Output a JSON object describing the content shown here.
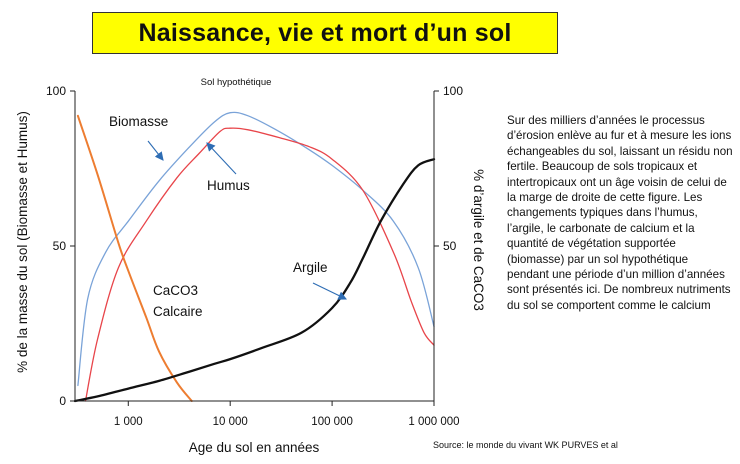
{
  "header": {
    "title": "Naissance, vie et mort d’un sol"
  },
  "description": "Sur des milliers d’années le processus d’érosion enlève au fur et à mesure les ions échangeables du sol, laissant un résidu non fertile. Beaucoup de sols tropicaux et intertropicaux ont un âge voisin de celui de la marge de droite de cette figure. Les changements typiques dans l’humus, l’argile, le carbonate de calcium et la quantité de végétation supportée (biomasse) par un sol hypothétique pendant une période d’un million d’années sont présentés ici. De nombreux nutriments du sol se comportent comme le calcium",
  "source": "Source: le monde du vivant WK PURVES et al",
  "chart_data": {
    "type": "line",
    "title": "Sol hypothétique",
    "xlabel": "Age du sol en années",
    "ylabel_left": "% de la masse du sol (Biomasse et Humus)",
    "ylabel_right": "% d’argile et de CaCO3",
    "x_scale": "log",
    "xlim": [
      300,
      1000000
    ],
    "ylim": [
      0,
      100
    ],
    "x_ticks": [
      {
        "value": 1000,
        "label": "1 000"
      },
      {
        "value": 10000,
        "label": "10 000"
      },
      {
        "value": 100000,
        "label": "100 000"
      },
      {
        "value": 1000000,
        "label": "1 000 000"
      }
    ],
    "y_ticks": [
      {
        "value": 0,
        "label": "0"
      },
      {
        "value": 50,
        "label": "50"
      },
      {
        "value": 100,
        "label": "100"
      }
    ],
    "y2_ticks": [
      {
        "value": 50,
        "label": "50"
      },
      {
        "value": 100,
        "label": "100"
      }
    ],
    "series": [
      {
        "name": "Biomasse",
        "axis": "left",
        "color": "#7aa3d8",
        "x": [
          320,
          400,
          600,
          1000,
          2000,
          4000,
          7000,
          10000,
          15000,
          30000,
          60000,
          100000,
          200000,
          400000,
          700000,
          1000000
        ],
        "y": [
          5,
          33,
          48,
          58,
          71,
          82,
          90,
          93,
          92,
          87,
          81,
          76,
          68,
          58,
          43,
          24
        ]
      },
      {
        "name": "Humus",
        "axis": "left",
        "color": "#e8454a",
        "x": [
          380,
          500,
          800,
          1500,
          3000,
          5000,
          8000,
          10000,
          15000,
          30000,
          60000,
          100000,
          200000,
          400000,
          600000,
          800000,
          1000000
        ],
        "y": [
          0,
          20,
          43,
          58,
          72,
          80,
          87,
          88,
          87.5,
          85,
          82,
          78,
          68,
          48,
          32,
          22,
          18
        ]
      },
      {
        "name": "CaCO3 Calcaire",
        "axis": "right",
        "color": "#ed7d31",
        "x": [
          320,
          500,
          800,
          1000,
          1500,
          2000,
          3000,
          4200
        ],
        "y": [
          92,
          73,
          51,
          42,
          27,
          16,
          6,
          0
        ]
      },
      {
        "name": "Argile",
        "axis": "right",
        "color": "#111111",
        "x": [
          300,
          500,
          1000,
          2000,
          4000,
          7000,
          10000,
          20000,
          50000,
          100000,
          150000,
          200000,
          300000,
          500000,
          700000,
          1000000
        ],
        "y": [
          0,
          1.5,
          4,
          6.5,
          9.5,
          12,
          13.5,
          17,
          22,
          30,
          38,
          46,
          58,
          70,
          76,
          78
        ]
      }
    ],
    "annotations": [
      {
        "series": "Biomasse",
        "text": "Biomasse"
      },
      {
        "series": "Humus",
        "text": "Humus"
      },
      {
        "series": "CaCO3 Calcaire",
        "text": "CaCO3"
      },
      {
        "series": "CaCO3 Calcaire",
        "text": "Calcaire"
      },
      {
        "series": "Argile",
        "text": "Argile"
      }
    ]
  }
}
